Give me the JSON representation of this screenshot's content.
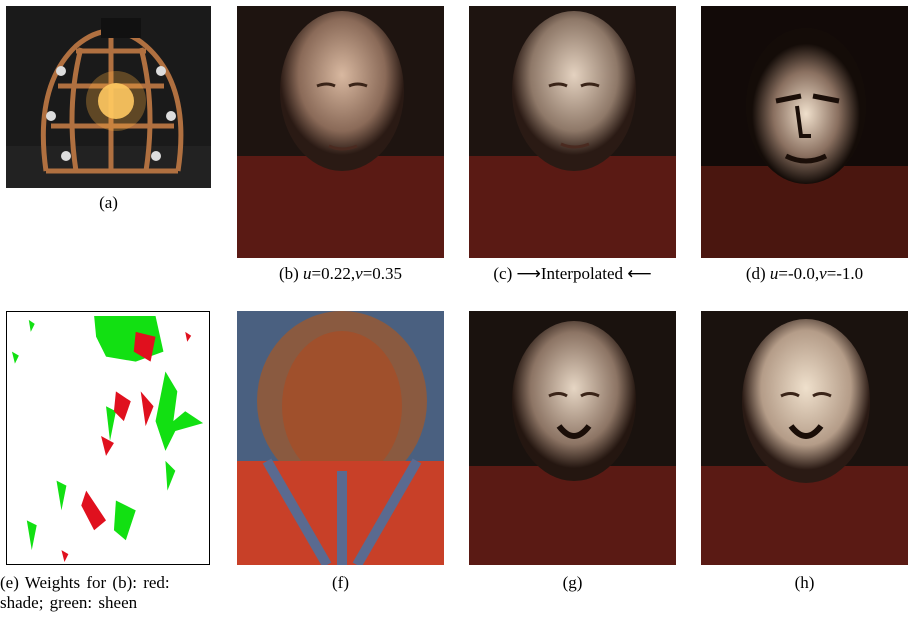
{
  "panels": {
    "a": {
      "caption": "(a)"
    },
    "b": {
      "caption_prefix": "(b) ",
      "u_label": "u",
      "u_value": "=0.22,",
      "v_label": "v",
      "v_value": "=0.35"
    },
    "c": {
      "caption_prefix": "(c) ",
      "arrow_right": "⟶",
      "caption_text": "Interpolated ",
      "arrow_left": "⟵"
    },
    "d": {
      "caption_prefix": "(d) ",
      "u_label": "u",
      "u_value": "=-0.0,",
      "v_label": "v",
      "v_value": "=-1.0"
    },
    "e": {
      "caption_line1": "(e) Weights for (b): red:",
      "caption_line2": "shade; green: sheen"
    },
    "f": {
      "caption": "(f)"
    },
    "g": {
      "caption": "(g)"
    },
    "h": {
      "caption": "(h)"
    }
  },
  "colors": {
    "shade": "#e0101e",
    "sheen": "#12e012",
    "shirt": "#5a1a14",
    "hair": "#1e1410"
  }
}
